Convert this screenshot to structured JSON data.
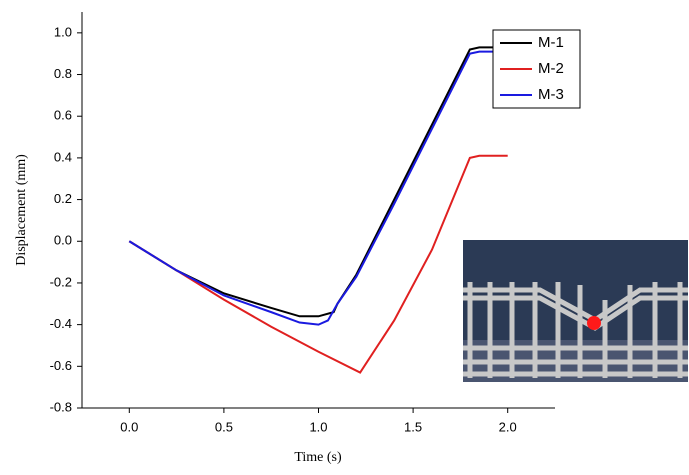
{
  "chart_data": {
    "type": "line",
    "x_label": "Time (s)",
    "y_label": "Displacement (mm)",
    "xlim": [
      -0.25,
      2.25
    ],
    "ylim": [
      -0.8,
      1.1
    ],
    "xticks": [
      {
        "value": 0,
        "label": "0.0"
      },
      0.5,
      {
        "value": 1,
        "label": "1.0"
      },
      1.5,
      {
        "value": 2,
        "label": "2.0"
      }
    ],
    "yticks": [
      {
        "value": -0.8,
        "label": "-0.8"
      },
      -0.6,
      -0.4,
      -0.2,
      {
        "value": 0,
        "label": "0.0"
      },
      0.2,
      0.4,
      0.6,
      0.8,
      {
        "value": 1,
        "label": "1.0"
      }
    ],
    "legend": "upper right",
    "series": [
      {
        "name": "M-1",
        "color": "#000000",
        "x": [
          0,
          0.25,
          0.5,
          0.75,
          0.9,
          1.0,
          1.08,
          1.1,
          1.2,
          1.4,
          1.6,
          1.8,
          1.85,
          2.0
        ],
        "values": [
          0,
          -0.14,
          -0.25,
          -0.32,
          -0.36,
          -0.36,
          -0.34,
          -0.3,
          -0.16,
          0.2,
          0.56,
          0.92,
          0.93,
          0.93
        ]
      },
      {
        "name": "M-2",
        "color": "#e02020",
        "x": [
          0,
          0.25,
          0.5,
          0.75,
          1.0,
          1.22,
          1.4,
          1.6,
          1.8,
          1.85,
          2.0
        ],
        "values": [
          0,
          -0.14,
          -0.28,
          -0.41,
          -0.53,
          -0.63,
          -0.38,
          -0.04,
          0.4,
          0.41,
          0.41
        ]
      },
      {
        "name": "M-3",
        "color": "#1a1ae0",
        "x": [
          0,
          0.25,
          0.5,
          0.75,
          0.9,
          1.0,
          1.05,
          1.1,
          1.2,
          1.4,
          1.6,
          1.8,
          1.85,
          2.0
        ],
        "values": [
          0,
          -0.14,
          -0.26,
          -0.34,
          -0.39,
          -0.4,
          -0.38,
          -0.3,
          -0.17,
          0.18,
          0.54,
          0.9,
          0.91,
          0.91
        ]
      }
    ]
  }
}
